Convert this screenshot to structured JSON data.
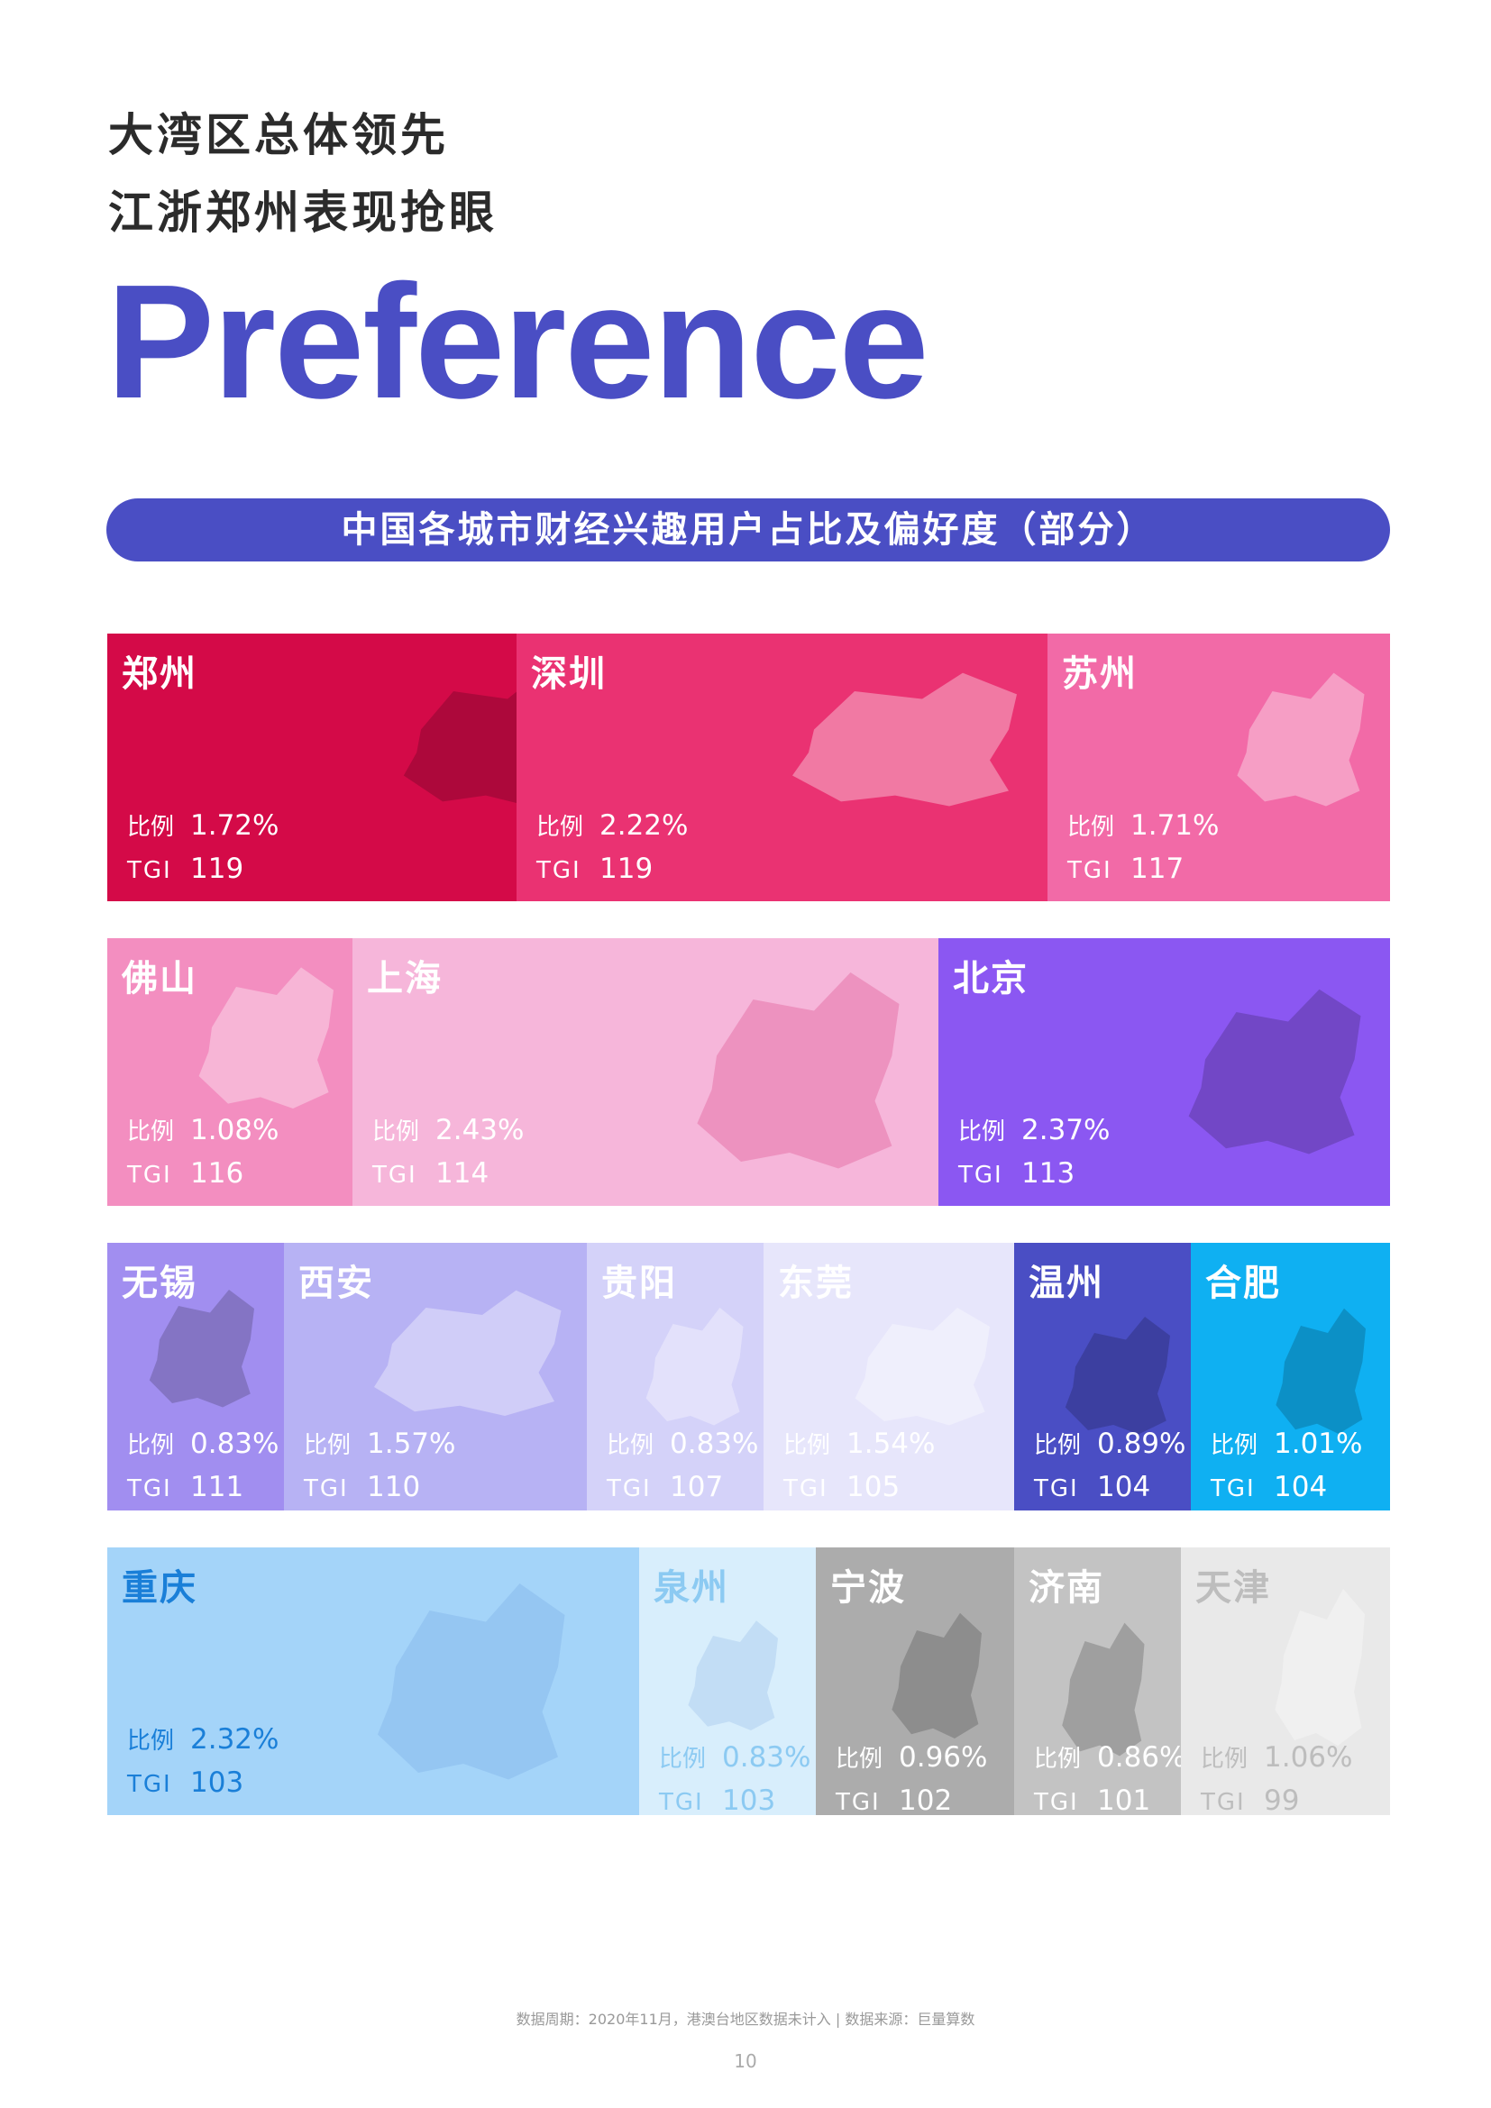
{
  "header": {
    "line1": "大湾区总体领先",
    "line2": "江浙郑州表现抢眼",
    "big_word": "Preference"
  },
  "banner": {
    "title": "中国各城市财经兴趣用户占比及偏好度（部分）"
  },
  "labels": {
    "ratio": "比例",
    "tgi": "TGI"
  },
  "cities": [
    {
      "name": "郑州",
      "ratio": "1.72%",
      "tgi": "119",
      "bg": "#d40a48",
      "fg": "#ffffff"
    },
    {
      "name": "深圳",
      "ratio": "2.22%",
      "tgi": "119",
      "bg": "#ea3272",
      "fg": "#ffffff"
    },
    {
      "name": "苏州",
      "ratio": "1.71%",
      "tgi": "117",
      "bg": "#f26aa7",
      "fg": "#ffffff"
    },
    {
      "name": "佛山",
      "ratio": "1.08%",
      "tgi": "116",
      "bg": "#f38ec0",
      "fg": "#ffffff"
    },
    {
      "name": "上海",
      "ratio": "2.43%",
      "tgi": "114",
      "bg": "#f6b6da",
      "fg": "#ffffff"
    },
    {
      "name": "北京",
      "ratio": "2.37%",
      "tgi": "113",
      "bg": "#8b57f2",
      "fg": "#ffffff"
    },
    {
      "name": "无锡",
      "ratio": "0.83%",
      "tgi": "111",
      "bg": "#a18ef0",
      "fg": "#ffffff"
    },
    {
      "name": "西安",
      "ratio": "1.57%",
      "tgi": "110",
      "bg": "#b7b2f4",
      "fg": "#ffffff"
    },
    {
      "name": "贵阳",
      "ratio": "0.83%",
      "tgi": "107",
      "bg": "#d4d2f9",
      "fg": "#ffffff"
    },
    {
      "name": "东莞",
      "ratio": "1.54%",
      "tgi": "105",
      "bg": "#e7e6fb",
      "fg": "#ffffff"
    },
    {
      "name": "温州",
      "ratio": "0.89%",
      "tgi": "104",
      "bg": "#4a4ec4",
      "fg": "#ffffff"
    },
    {
      "name": "合肥",
      "ratio": "1.01%",
      "tgi": "104",
      "bg": "#0fb0f2",
      "fg": "#ffffff"
    },
    {
      "name": "重庆",
      "ratio": "2.32%",
      "tgi": "103",
      "bg": "#a4d4f9",
      "fg": "#1a7fd8"
    },
    {
      "name": "泉州",
      "ratio": "0.83%",
      "tgi": "103",
      "bg": "#d8eefc",
      "fg": "#8ccaf2"
    },
    {
      "name": "宁波",
      "ratio": "0.96%",
      "tgi": "102",
      "bg": "#acacac",
      "fg": "#ffffff"
    },
    {
      "name": "济南",
      "ratio": "0.86%",
      "tgi": "101",
      "bg": "#c3c3c3",
      "fg": "#ffffff"
    },
    {
      "name": "天津",
      "ratio": "1.06%",
      "tgi": "99",
      "bg": "#e9e9e9",
      "fg": "#bdbdbd"
    }
  ],
  "footer": {
    "note": "数据周期：2020年11月，港澳台地区数据未计入 | 数据来源：巨量算数",
    "page": "10"
  }
}
